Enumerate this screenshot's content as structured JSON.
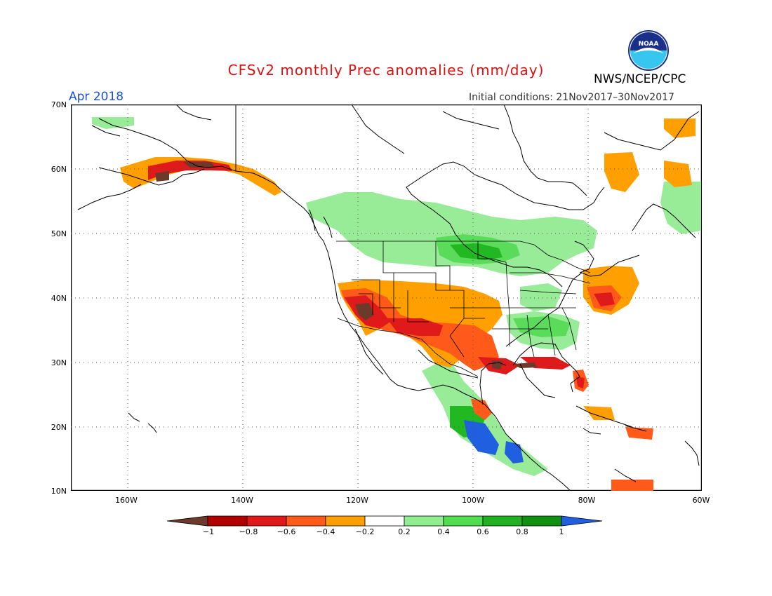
{
  "header": {
    "title": "CFSv2 monthly Prec anomalies (mm/day)",
    "month": "Apr 2018",
    "initial_conditions": "Initial conditions: 21Nov2017–30Nov2017",
    "agency": "NWS/NCEP/CPC",
    "logo_text": "NOAA"
  },
  "map": {
    "lat_labels": [
      "70N",
      "60N",
      "50N",
      "40N",
      "30N",
      "20N",
      "10N"
    ],
    "lon_labels": [
      "160W",
      "140W",
      "120W",
      "100W",
      "80W",
      "60W"
    ],
    "grid_lines": true
  },
  "colorbar": {
    "tick_labels": [
      "−1",
      "−0.8",
      "−0.6",
      "−0.4",
      "−0.2",
      "0.2",
      "0.4",
      "0.6",
      "0.8",
      "1"
    ],
    "colors": [
      "#6b3a2a",
      "#b00000",
      "#e01a1a",
      "#ff5a1a",
      "#ffa000",
      "#ffffff",
      "#90ee90",
      "#50dd50",
      "#20b020",
      "#109010",
      "#2060e0"
    ]
  },
  "anomaly_colors": {
    "lt_m1": "#6b3a2a",
    "m1_m08": "#b00000",
    "m08_m06": "#e01a1a",
    "m06_m04": "#ff5a1a",
    "m04_m02": "#ffa000",
    "p02_p04": "#98ec98",
    "p04_p06": "#5adc5a",
    "p06_p08": "#22b822",
    "p08_p1": "#139613",
    "gt_p1": "#2060e0"
  }
}
